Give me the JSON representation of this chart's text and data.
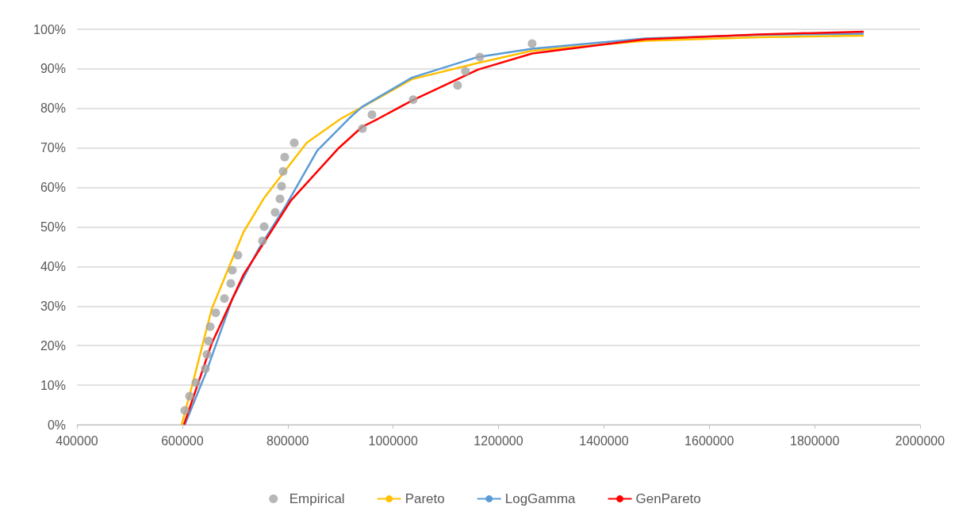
{
  "chart_data": {
    "type": "line",
    "xlim": [
      400000,
      2000000
    ],
    "xticks": [
      400000,
      600000,
      800000,
      1000000,
      1200000,
      1400000,
      1600000,
      1800000,
      2000000
    ],
    "ylim": [
      0,
      100
    ],
    "yticks": [
      {
        "value": 0,
        "label": "0%"
      },
      {
        "value": 10,
        "label": "10%"
      },
      {
        "value": 20,
        "label": "20%"
      },
      {
        "value": 30,
        "label": "30%"
      },
      {
        "value": 40,
        "label": "40%"
      },
      {
        "value": 50,
        "label": "50%"
      },
      {
        "value": 60,
        "label": "60%"
      },
      {
        "value": 70,
        "label": "70%"
      },
      {
        "value": 80,
        "label": "80%"
      },
      {
        "value": 90,
        "label": "90%"
      },
      {
        "value": 100,
        "label": "100%"
      }
    ],
    "grid": "y",
    "legend": "bottom",
    "line_style": "solid",
    "series": [
      {
        "name": "Empirical",
        "type": "scatter",
        "marker": "circle",
        "color": "#a5a5a5",
        "x": [
          604700,
          613700,
          625700,
          643800,
          646800,
          649800,
          652800,
          663400,
          679900,
          692000,
          695000,
          705500,
          752200,
          755200,
          776200,
          785300,
          788300,
          791300,
          794300,
          812400,
          941800,
          959900,
          1038100,
          1122400,
          1137400,
          1164500,
          1263800
        ],
        "values": [
          3.6,
          7.2,
          10.6,
          14.2,
          17.8,
          21.2,
          24.8,
          28.3,
          31.9,
          35.7,
          39.1,
          42.9,
          46.5,
          50.1,
          53.7,
          57.1,
          60.3,
          64.1,
          67.7,
          71.3,
          74.9,
          78.4,
          82.2,
          85.8,
          89.4,
          93.0,
          96.4
        ]
      },
      {
        "name": "Pareto",
        "color": "#ffc000",
        "x": [
          598700,
          620000,
          655900,
          716000,
          755000,
          836000,
          901000,
          941000,
          1036000,
          1161000,
          1264000,
          1479000,
          1694000,
          1893000
        ],
        "values": [
          0,
          10.6,
          29.3,
          48.7,
          57.3,
          71.3,
          77.4,
          80.3,
          87.4,
          91.5,
          94.6,
          97.1,
          98.0,
          98.4
        ]
      },
      {
        "name": "LogGamma",
        "color": "#5b9bd5",
        "x": [
          604700,
          645000,
          695000,
          746000,
          796000,
          856000,
          916000,
          941000,
          1036000,
          1161000,
          1264000,
          1479000,
          1694000,
          1893000
        ],
        "values": [
          0,
          13.2,
          31.9,
          44.7,
          55.3,
          69.3,
          77.4,
          80.4,
          87.8,
          93.0,
          95.1,
          97.7,
          98.6,
          98.9
        ]
      },
      {
        "name": "GenPareto",
        "color": "#ff0000",
        "x": [
          603000,
          656000,
          716000,
          806000,
          897000,
          941000,
          972000,
          1036000,
          1161000,
          1264000,
          1479000,
          1694000,
          1893000
        ],
        "values": [
          0,
          20.6,
          37.9,
          56.7,
          70.0,
          75.3,
          77.4,
          82.0,
          89.8,
          93.9,
          97.5,
          98.7,
          99.4
        ]
      }
    ]
  }
}
